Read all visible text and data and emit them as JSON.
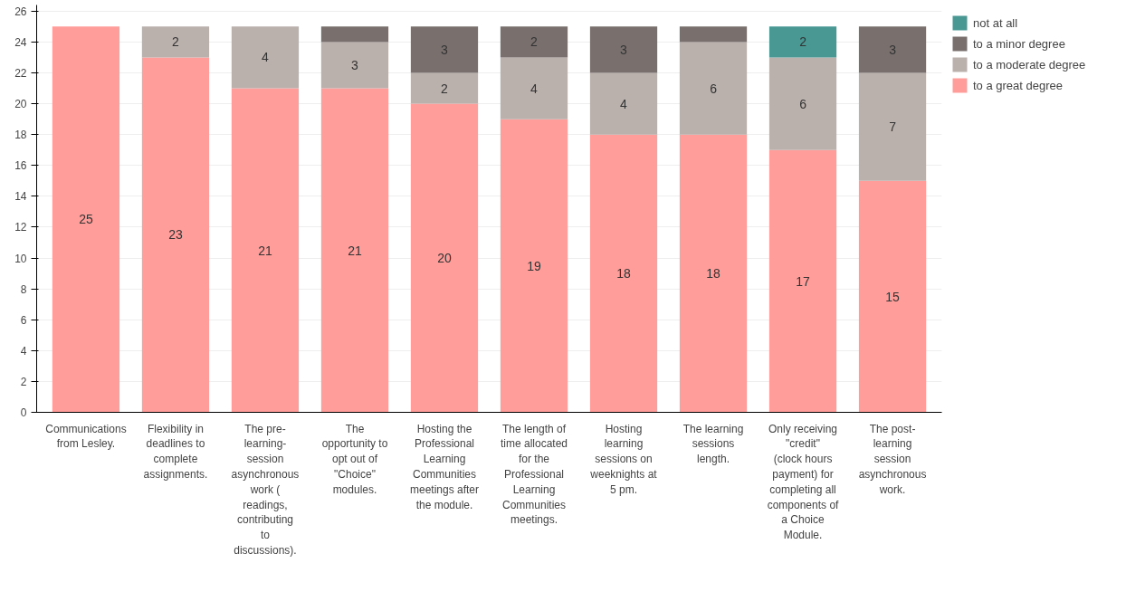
{
  "chart_data": {
    "type": "bar",
    "stacked": true,
    "categories": [
      "Communications from Lesley.",
      "Flexibility in deadlines to complete assignments.",
      "The pre-learning-session asynchronous work ( readings, contributing to discussions).",
      "The opportunity to opt out of \"Choice\" modules.",
      "Hosting the Professional Learning Communities meetings after the module.",
      "The length of time allocated for the Professional Learning Communities meetings.",
      "Hosting learning sessions on weeknights at 5 pm.",
      "The learning sessions length.",
      "Only receiving \"credit\" (clock hours payment) for completing all components of a Choice Module.",
      "The post-learning session asynchronous work."
    ],
    "series": [
      {
        "name": "to a great degree",
        "color": "#ff9d9a",
        "values": [
          25,
          23,
          21,
          21,
          20,
          19,
          18,
          18,
          17,
          15
        ],
        "value_labels": [
          "25",
          "23",
          "21",
          "21",
          "20",
          "19",
          "18",
          "18",
          "17",
          "15"
        ]
      },
      {
        "name": "to a moderate degree",
        "color": "#bab0ac",
        "values": [
          0,
          2,
          4,
          3,
          2,
          4,
          4,
          6,
          6,
          7
        ],
        "value_labels": [
          null,
          "2",
          "4",
          "3",
          "2",
          "4",
          "4",
          "6",
          "6",
          "7"
        ]
      },
      {
        "name": "to a minor degree",
        "color": "#79706e",
        "values": [
          0,
          0,
          0,
          1,
          3,
          2,
          3,
          1,
          0,
          3
        ],
        "value_labels": [
          null,
          null,
          null,
          null,
          "3",
          "2",
          "3",
          null,
          null,
          "3"
        ]
      },
      {
        "name": "not at all",
        "color": "#499894",
        "values": [
          0,
          0,
          0,
          0,
          0,
          0,
          0,
          0,
          2,
          0
        ],
        "value_labels": [
          null,
          null,
          null,
          null,
          null,
          null,
          null,
          null,
          "2",
          null
        ]
      }
    ],
    "ylim": [
      0,
      26.4
    ],
    "yticks": [
      0,
      2,
      4,
      6,
      8,
      10,
      12,
      14,
      16,
      18,
      20,
      22,
      24,
      26
    ],
    "grid": "y",
    "legend": "top right"
  }
}
